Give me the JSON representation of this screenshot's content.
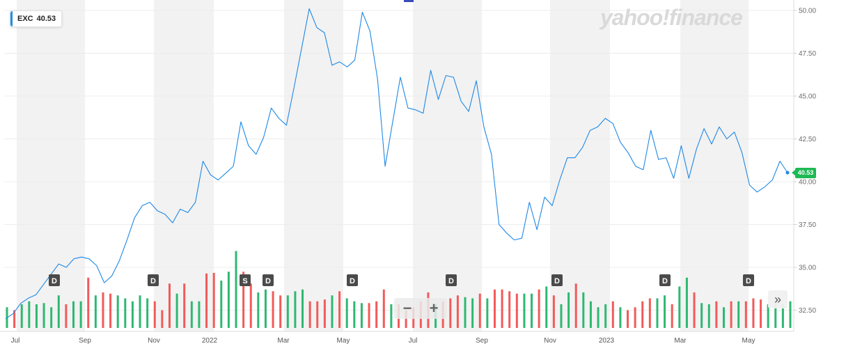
{
  "ticker": {
    "symbol": "EXC",
    "price": "40.53"
  },
  "watermark": "yahoo!finance",
  "last_price_label": "40.53",
  "zoom": {
    "out_icon": "−",
    "in_icon": "+"
  },
  "scroll_icon": "»",
  "colors": {
    "line": "#1e88e5",
    "up": "#2eb872",
    "down": "#f25a5a",
    "band": "#f2f2f2",
    "marker": "#4a4a4a",
    "last_tag": "#1db954"
  },
  "chart_data": {
    "type": "line",
    "ylim": [
      31.8,
      50.6
    ],
    "yticks": [
      "50.00",
      "47.50",
      "45.00",
      "42.50",
      "40.00",
      "37.50",
      "35.00",
      "32.50"
    ],
    "x_labels": [
      "Jul",
      "Sep",
      "Nov",
      "2022",
      "Mar",
      "May",
      "Jul",
      "Sep",
      "Nov",
      "2023",
      "Mar",
      "May"
    ],
    "markers": [
      "D",
      "D",
      "S",
      "D",
      "D",
      "D",
      "D",
      "D",
      "D"
    ],
    "series": [
      {
        "values": [
          32.0,
          32.3,
          32.9,
          33.2,
          33.4,
          34.0,
          34.6,
          35.2,
          35.0,
          35.5,
          35.6,
          35.5,
          35.1,
          34.1,
          34.5,
          35.4,
          36.6,
          37.9,
          38.6,
          38.8,
          38.3,
          38.1,
          37.6,
          38.4,
          38.2,
          38.8,
          41.2,
          40.4,
          40.1,
          40.5,
          40.9,
          43.5,
          42.1,
          41.6,
          42.6,
          44.3,
          43.7,
          43.3,
          45.5,
          47.8,
          50.1,
          49.0,
          48.7,
          46.8,
          47.0,
          46.7,
          47.1,
          49.9,
          48.8,
          46.0,
          40.9,
          43.5,
          46.1,
          44.3,
          44.2,
          44.0,
          46.5,
          44.8,
          46.2,
          46.1,
          44.7,
          44.1,
          45.9,
          43.2,
          41.6,
          37.5,
          37.0,
          36.6,
          36.7,
          38.8,
          37.2,
          39.1,
          38.6,
          40.1,
          41.4,
          41.4,
          42.0,
          43.0,
          43.2,
          43.7,
          43.4,
          42.3,
          41.7,
          40.9,
          40.7,
          43.0,
          41.3,
          41.4,
          40.2,
          42.1,
          40.2,
          41.9,
          43.1,
          42.2,
          43.2,
          42.5,
          42.9,
          41.7,
          39.8,
          39.4,
          39.7,
          40.1,
          41.2,
          40.53
        ]
      }
    ],
    "volume": [
      {
        "v": 0.35,
        "up": true
      },
      {
        "v": 0.3,
        "up": false
      },
      {
        "v": 0.4,
        "up": true
      },
      {
        "v": 0.45,
        "up": true
      },
      {
        "v": 0.4,
        "up": true
      },
      {
        "v": 0.42,
        "up": true
      },
      {
        "v": 0.35,
        "up": true
      },
      {
        "v": 0.55,
        "up": true
      },
      {
        "v": 0.4,
        "up": false
      },
      {
        "v": 0.45,
        "up": true
      },
      {
        "v": 0.45,
        "up": true
      },
      {
        "v": 0.85,
        "up": false
      },
      {
        "v": 0.55,
        "up": true
      },
      {
        "v": 0.6,
        "up": false
      },
      {
        "v": 0.58,
        "up": false
      },
      {
        "v": 0.55,
        "up": true
      },
      {
        "v": 0.5,
        "up": true
      },
      {
        "v": 0.45,
        "up": true
      },
      {
        "v": 0.55,
        "up": true
      },
      {
        "v": 0.5,
        "up": true
      },
      {
        "v": 0.45,
        "up": false
      },
      {
        "v": 0.3,
        "up": false
      },
      {
        "v": 0.75,
        "up": false
      },
      {
        "v": 0.58,
        "up": true
      },
      {
        "v": 0.75,
        "up": false
      },
      {
        "v": 0.45,
        "up": true
      },
      {
        "v": 0.45,
        "up": true
      },
      {
        "v": 0.92,
        "up": false
      },
      {
        "v": 0.93,
        "up": false
      },
      {
        "v": 0.8,
        "up": true
      },
      {
        "v": 0.95,
        "up": true
      },
      {
        "v": 1.3,
        "up": true
      },
      {
        "v": 0.95,
        "up": false
      },
      {
        "v": 0.75,
        "up": false
      },
      {
        "v": 0.6,
        "up": true
      },
      {
        "v": 0.65,
        "up": true
      },
      {
        "v": 0.62,
        "up": false
      },
      {
        "v": 0.55,
        "up": false
      },
      {
        "v": 0.55,
        "up": true
      },
      {
        "v": 0.62,
        "up": true
      },
      {
        "v": 0.65,
        "up": true
      },
      {
        "v": 0.45,
        "up": false
      },
      {
        "v": 0.45,
        "up": false
      },
      {
        "v": 0.48,
        "up": false
      },
      {
        "v": 0.55,
        "up": true
      },
      {
        "v": 0.62,
        "up": false
      },
      {
        "v": 0.5,
        "up": true
      },
      {
        "v": 0.45,
        "up": true
      },
      {
        "v": 0.42,
        "up": true
      },
      {
        "v": 0.42,
        "up": false
      },
      {
        "v": 0.45,
        "up": false
      },
      {
        "v": 0.65,
        "up": false
      },
      {
        "v": 0.4,
        "up": true
      },
      {
        "v": 0.4,
        "up": false
      },
      {
        "v": 0.3,
        "up": false
      },
      {
        "v": 0.35,
        "up": false
      },
      {
        "v": 0.45,
        "up": false
      },
      {
        "v": 0.6,
        "up": false
      },
      {
        "v": 0.4,
        "up": true
      },
      {
        "v": 0.45,
        "up": false
      },
      {
        "v": 0.5,
        "up": false
      },
      {
        "v": 0.55,
        "up": false
      },
      {
        "v": 0.52,
        "up": true
      },
      {
        "v": 0.5,
        "up": true
      },
      {
        "v": 0.58,
        "up": false
      },
      {
        "v": 0.5,
        "up": true
      },
      {
        "v": 0.65,
        "up": false
      },
      {
        "v": 0.65,
        "up": false
      },
      {
        "v": 0.62,
        "up": false
      },
      {
        "v": 0.58,
        "up": false
      },
      {
        "v": 0.58,
        "up": true
      },
      {
        "v": 0.58,
        "up": true
      },
      {
        "v": 0.65,
        "up": false
      },
      {
        "v": 0.7,
        "up": true
      },
      {
        "v": 0.55,
        "up": false
      },
      {
        "v": 0.4,
        "up": true
      },
      {
        "v": 0.6,
        "up": true
      },
      {
        "v": 0.75,
        "up": false
      },
      {
        "v": 0.6,
        "up": true
      },
      {
        "v": 0.45,
        "up": true
      },
      {
        "v": 0.35,
        "up": true
      },
      {
        "v": 0.4,
        "up": true
      },
      {
        "v": 0.45,
        "up": false
      },
      {
        "v": 0.35,
        "up": true
      },
      {
        "v": 0.3,
        "up": false
      },
      {
        "v": 0.35,
        "up": false
      },
      {
        "v": 0.45,
        "up": false
      },
      {
        "v": 0.5,
        "up": false
      },
      {
        "v": 0.5,
        "up": true
      },
      {
        "v": 0.55,
        "up": true
      },
      {
        "v": 0.4,
        "up": false
      },
      {
        "v": 0.7,
        "up": true
      },
      {
        "v": 0.85,
        "up": true
      },
      {
        "v": 0.6,
        "up": false
      },
      {
        "v": 0.42,
        "up": true
      },
      {
        "v": 0.4,
        "up": true
      },
      {
        "v": 0.45,
        "up": false
      },
      {
        "v": 0.35,
        "up": true
      },
      {
        "v": 0.45,
        "up": false
      },
      {
        "v": 0.45,
        "up": true
      },
      {
        "v": 0.45,
        "up": false
      },
      {
        "v": 0.5,
        "up": false
      },
      {
        "v": 0.48,
        "up": false
      },
      {
        "v": 0.4,
        "up": true
      },
      {
        "v": 0.42,
        "up": true
      },
      {
        "v": 0.4,
        "up": true
      },
      {
        "v": 0.45,
        "up": true
      }
    ]
  }
}
